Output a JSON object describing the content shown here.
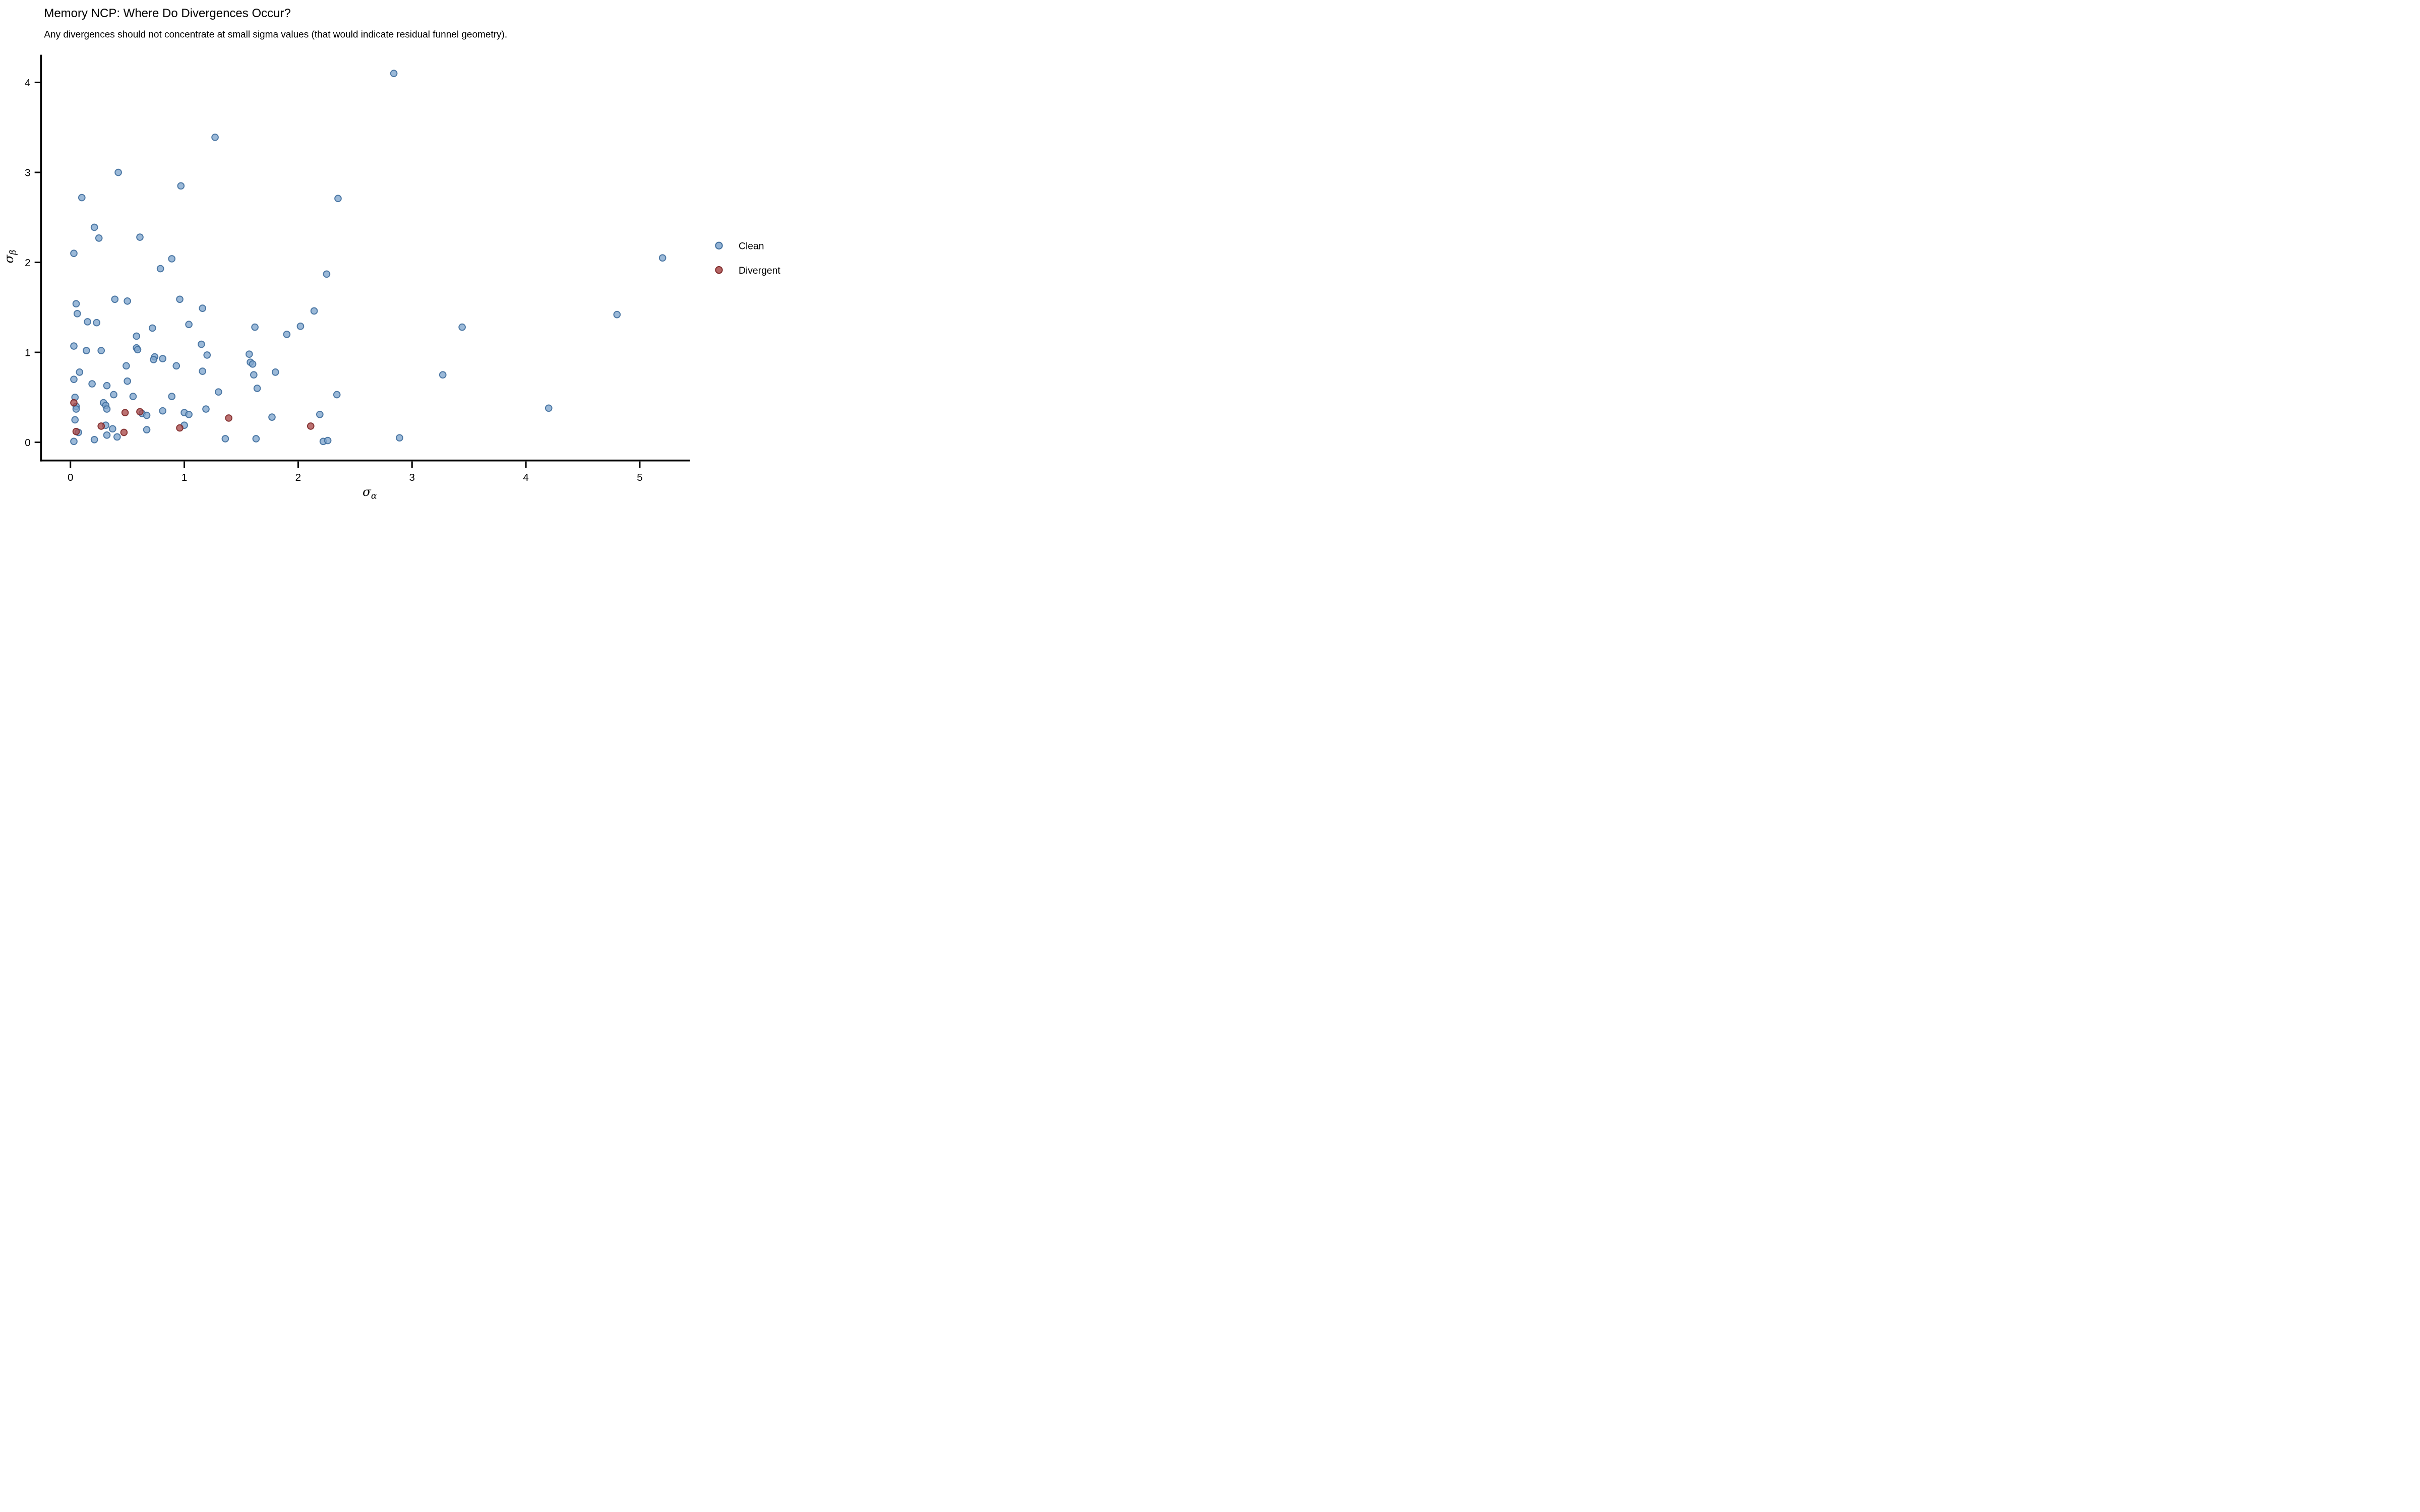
{
  "figure": {
    "title": "Memory NCP: Where Do Divergences Occur?",
    "subtitle": "Any divergences should not concentrate at small sigma values (that would indicate residual funnel geometry)."
  },
  "axes": {
    "x": {
      "label_base": "σ",
      "label_sub": "α"
    },
    "y": {
      "label_base": "σ",
      "label_sub": "β"
    }
  },
  "legend": {
    "items": [
      {
        "label": "Clean"
      },
      {
        "label": "Divergent"
      }
    ]
  },
  "colors": {
    "clean_fill": "#7FA5CD",
    "clean_edge": "#3E6D9C",
    "divergent_fill": "#A94A4A",
    "divergent_edge": "#7D2828",
    "axis": "#000000",
    "background": "#FFFFFF"
  },
  "chart_data": {
    "type": "scatter",
    "title": "Memory NCP: Where Do Divergences Occur?",
    "subtitle": "Any divergences should not concentrate at small sigma values (that would indicate residual funnel geometry).",
    "xlabel": "sigma_alpha",
    "ylabel": "sigma_beta",
    "xlim": [
      -0.26,
      5.44
    ],
    "ylim": [
      -0.2,
      4.3
    ],
    "xticks": [
      0,
      1,
      2,
      3,
      4,
      5
    ],
    "yticks": [
      0,
      1,
      2,
      3,
      4
    ],
    "grid": false,
    "legend_position": "right",
    "series": [
      {
        "name": "Clean",
        "marker": "circle",
        "fill": "#7FA5CD",
        "edge": "#3E6D9C",
        "points": [
          [
            2.84,
            4.1
          ],
          [
            1.27,
            3.39
          ],
          [
            0.42,
            3.0
          ],
          [
            0.97,
            2.85
          ],
          [
            0.1,
            2.72
          ],
          [
            2.35,
            2.71
          ],
          [
            0.21,
            2.39
          ],
          [
            0.25,
            2.27
          ],
          [
            0.61,
            2.28
          ],
          [
            0.03,
            2.1
          ],
          [
            0.89,
            2.04
          ],
          [
            0.79,
            1.93
          ],
          [
            2.25,
            1.87
          ],
          [
            0.39,
            1.59
          ],
          [
            0.5,
            1.57
          ],
          [
            0.05,
            1.54
          ],
          [
            0.96,
            1.59
          ],
          [
            1.16,
            1.49
          ],
          [
            0.06,
            1.43
          ],
          [
            0.15,
            1.34
          ],
          [
            0.23,
            1.33
          ],
          [
            1.04,
            1.31
          ],
          [
            2.14,
            1.46
          ],
          [
            2.02,
            1.29
          ],
          [
            5.2,
            2.05
          ],
          [
            4.8,
            1.42
          ],
          [
            1.9,
            1.2
          ],
          [
            3.44,
            1.28
          ],
          [
            1.8,
            0.78
          ],
          [
            3.27,
            0.75
          ],
          [
            2.34,
            0.53
          ],
          [
            1.77,
            0.28
          ],
          [
            2.19,
            0.31
          ],
          [
            2.22,
            0.01
          ],
          [
            2.26,
            0.02
          ],
          [
            2.89,
            0.05
          ],
          [
            4.2,
            0.38
          ],
          [
            0.03,
            1.07
          ],
          [
            0.14,
            1.02
          ],
          [
            0.27,
            1.02
          ],
          [
            0.58,
            1.18
          ],
          [
            0.72,
            1.27
          ],
          [
            0.58,
            1.05
          ],
          [
            0.59,
            1.03
          ],
          [
            0.49,
            0.85
          ],
          [
            0.08,
            0.78
          ],
          [
            0.03,
            0.7
          ],
          [
            0.19,
            0.65
          ],
          [
            0.32,
            0.63
          ],
          [
            0.5,
            0.68
          ],
          [
            0.38,
            0.53
          ],
          [
            0.55,
            0.51
          ],
          [
            0.04,
            0.5
          ],
          [
            0.05,
            0.4
          ],
          [
            0.05,
            0.37
          ],
          [
            0.29,
            0.44
          ],
          [
            0.31,
            0.41
          ],
          [
            0.32,
            0.37
          ],
          [
            0.63,
            0.32
          ],
          [
            0.67,
            0.3
          ],
          [
            0.04,
            0.25
          ],
          [
            0.31,
            0.19
          ],
          [
            0.37,
            0.15
          ],
          [
            0.32,
            0.08
          ],
          [
            0.41,
            0.06
          ],
          [
            0.07,
            0.11
          ],
          [
            0.03,
            0.01
          ],
          [
            0.21,
            0.03
          ],
          [
            0.67,
            0.14
          ],
          [
            1.15,
            1.09
          ],
          [
            1.2,
            0.97
          ],
          [
            0.81,
            0.93
          ],
          [
            0.93,
            0.85
          ],
          [
            1.16,
            0.79
          ],
          [
            1.57,
            0.98
          ],
          [
            1.58,
            0.89
          ],
          [
            1.6,
            0.87
          ],
          [
            1.61,
            0.75
          ],
          [
            1.64,
            0.6
          ],
          [
            1.3,
            0.56
          ],
          [
            0.89,
            0.51
          ],
          [
            0.81,
            0.35
          ],
          [
            1.0,
            0.33
          ],
          [
            1.04,
            0.31
          ],
          [
            1.19,
            0.37
          ],
          [
            1.0,
            0.19
          ],
          [
            1.36,
            0.04
          ],
          [
            1.63,
            0.04
          ],
          [
            1.62,
            1.28
          ],
          [
            0.74,
            0.95
          ],
          [
            0.73,
            0.92
          ]
        ]
      },
      {
        "name": "Divergent",
        "marker": "circle",
        "fill": "#A94A4A",
        "edge": "#7D2828",
        "points": [
          [
            0.03,
            0.44
          ],
          [
            0.05,
            0.12
          ],
          [
            0.27,
            0.18
          ],
          [
            0.48,
            0.33
          ],
          [
            0.61,
            0.34
          ],
          [
            0.47,
            0.11
          ],
          [
            0.96,
            0.16
          ],
          [
            1.39,
            0.27
          ],
          [
            2.11,
            0.18
          ]
        ]
      }
    ]
  }
}
